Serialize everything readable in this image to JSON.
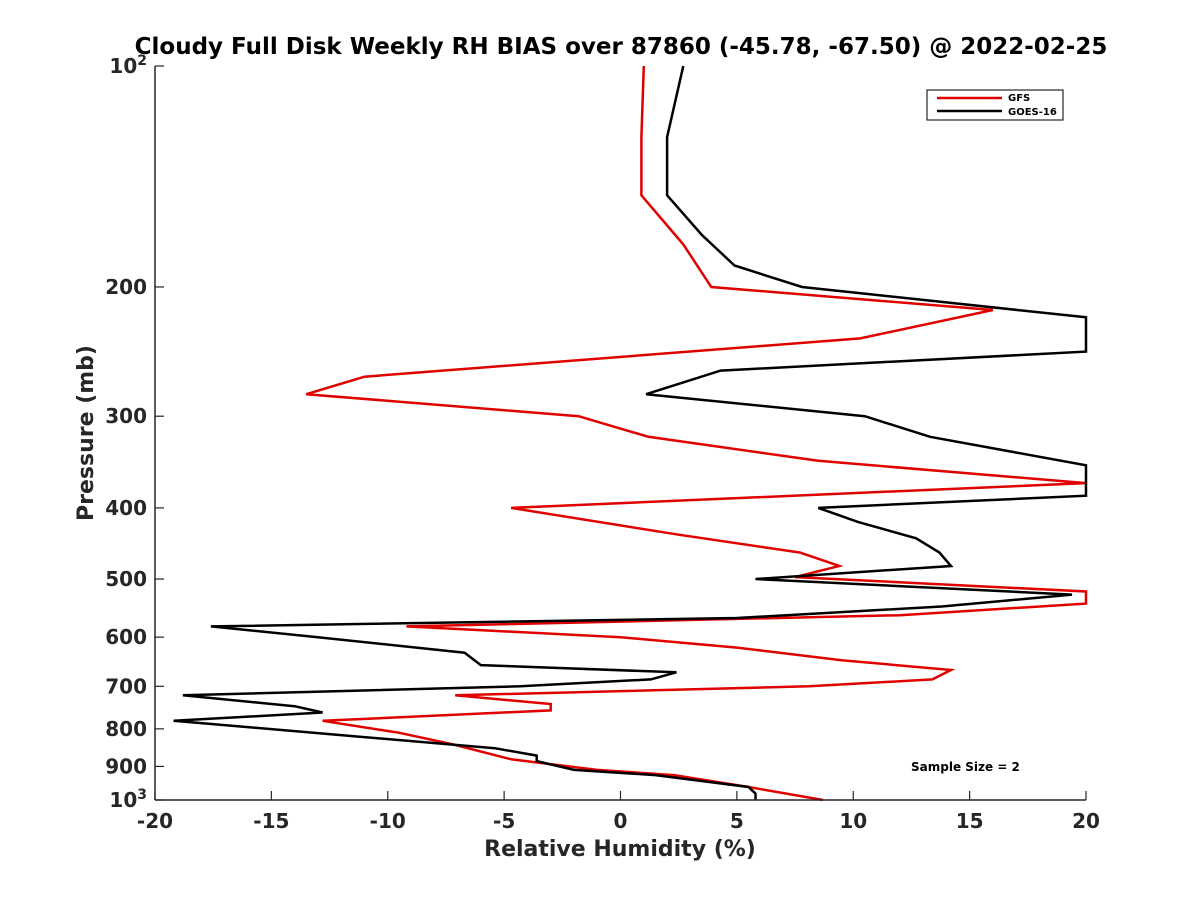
{
  "chart_data": {
    "type": "line",
    "title": "Cloudy Full Disk Weekly RH BIAS over 87860 (-45.78, -67.50) @ 2022-02-25",
    "xlabel": "Relative Humidity (%)",
    "ylabel": "Pressure (mb)",
    "xlim": [
      -20,
      20
    ],
    "ylim": [
      100,
      1000
    ],
    "y_scale": "log",
    "y_reversed": true,
    "grid": false,
    "legend_position": "top-right",
    "x_ticks": [
      "-20",
      "-15",
      "-10",
      "-5",
      "0",
      "5",
      "10",
      "15",
      "20"
    ],
    "y_ticks": [
      {
        "value": 100,
        "base": "10",
        "exp": "2"
      },
      {
        "value": 200,
        "label": "200"
      },
      {
        "value": 300,
        "label": "300"
      },
      {
        "value": 400,
        "label": "400"
      },
      {
        "value": 500,
        "label": "500"
      },
      {
        "value": 600,
        "label": "600"
      },
      {
        "value": 700,
        "label": "700"
      },
      {
        "value": 800,
        "label": "800"
      },
      {
        "value": 900,
        "label": "900"
      },
      {
        "value": 1000,
        "base": "10",
        "exp": "3"
      }
    ],
    "annotation": "Sample Size = 2",
    "series": [
      {
        "name": "GFS",
        "color": "#e00000",
        "points": [
          [
            1.0,
            100
          ],
          [
            0.9,
            125
          ],
          [
            0.9,
            150
          ],
          [
            2.7,
            175
          ],
          [
            3.9,
            200
          ],
          [
            16.0,
            215
          ],
          [
            10.3,
            235
          ],
          [
            -11.0,
            265
          ],
          [
            -13.5,
            280
          ],
          [
            -1.8,
            300
          ],
          [
            1.2,
            320
          ],
          [
            8.5,
            345
          ],
          [
            20.0,
            370
          ],
          [
            -4.7,
            400
          ],
          [
            2.5,
            435
          ],
          [
            7.7,
            460
          ],
          [
            9.4,
            480
          ],
          [
            7.5,
            497
          ],
          [
            20.0,
            520
          ],
          [
            20.0,
            540
          ],
          [
            12.0,
            560
          ],
          [
            -9.2,
            580
          ],
          [
            0.0,
            600
          ],
          [
            5.0,
            620
          ],
          [
            9.5,
            645
          ],
          [
            14.2,
            665
          ],
          [
            13.4,
            685
          ],
          [
            8.1,
            700
          ],
          [
            -7.1,
            720
          ],
          [
            -3.0,
            740
          ],
          [
            -3.0,
            755
          ],
          [
            -12.8,
            780
          ],
          [
            -9.5,
            810
          ],
          [
            -7.2,
            840
          ],
          [
            -4.7,
            880
          ],
          [
            -1.0,
            910
          ],
          [
            2.3,
            925
          ],
          [
            5.5,
            960
          ],
          [
            8.7,
            1000
          ]
        ]
      },
      {
        "name": "GOES-16",
        "color": "#000000",
        "points": [
          [
            2.7,
            100
          ],
          [
            2.0,
            125
          ],
          [
            2.0,
            150
          ],
          [
            3.5,
            170
          ],
          [
            4.9,
            187
          ],
          [
            7.8,
            200
          ],
          [
            20.0,
            220
          ],
          [
            20.0,
            245
          ],
          [
            4.3,
            260
          ],
          [
            1.1,
            280
          ],
          [
            10.5,
            300
          ],
          [
            13.3,
            320
          ],
          [
            20.0,
            350
          ],
          [
            20.0,
            385
          ],
          [
            8.5,
            400
          ],
          [
            10.2,
            418
          ],
          [
            12.7,
            440
          ],
          [
            13.7,
            460
          ],
          [
            14.2,
            480
          ],
          [
            5.8,
            500
          ],
          [
            19.4,
            525
          ],
          [
            13.8,
            545
          ],
          [
            5.0,
            565
          ],
          [
            -17.6,
            580
          ],
          [
            -13.0,
            600
          ],
          [
            -6.7,
            630
          ],
          [
            -6.0,
            655
          ],
          [
            2.4,
            670
          ],
          [
            1.3,
            685
          ],
          [
            -4.3,
            700
          ],
          [
            -18.8,
            720
          ],
          [
            -14.0,
            745
          ],
          [
            -12.8,
            760
          ],
          [
            -19.2,
            780
          ],
          [
            -11.2,
            820
          ],
          [
            -5.4,
            850
          ],
          [
            -3.6,
            870
          ],
          [
            -3.6,
            885
          ],
          [
            -2.0,
            910
          ],
          [
            1.5,
            925
          ],
          [
            5.5,
            960
          ],
          [
            5.8,
            980
          ],
          [
            5.8,
            1000
          ]
        ]
      }
    ]
  }
}
